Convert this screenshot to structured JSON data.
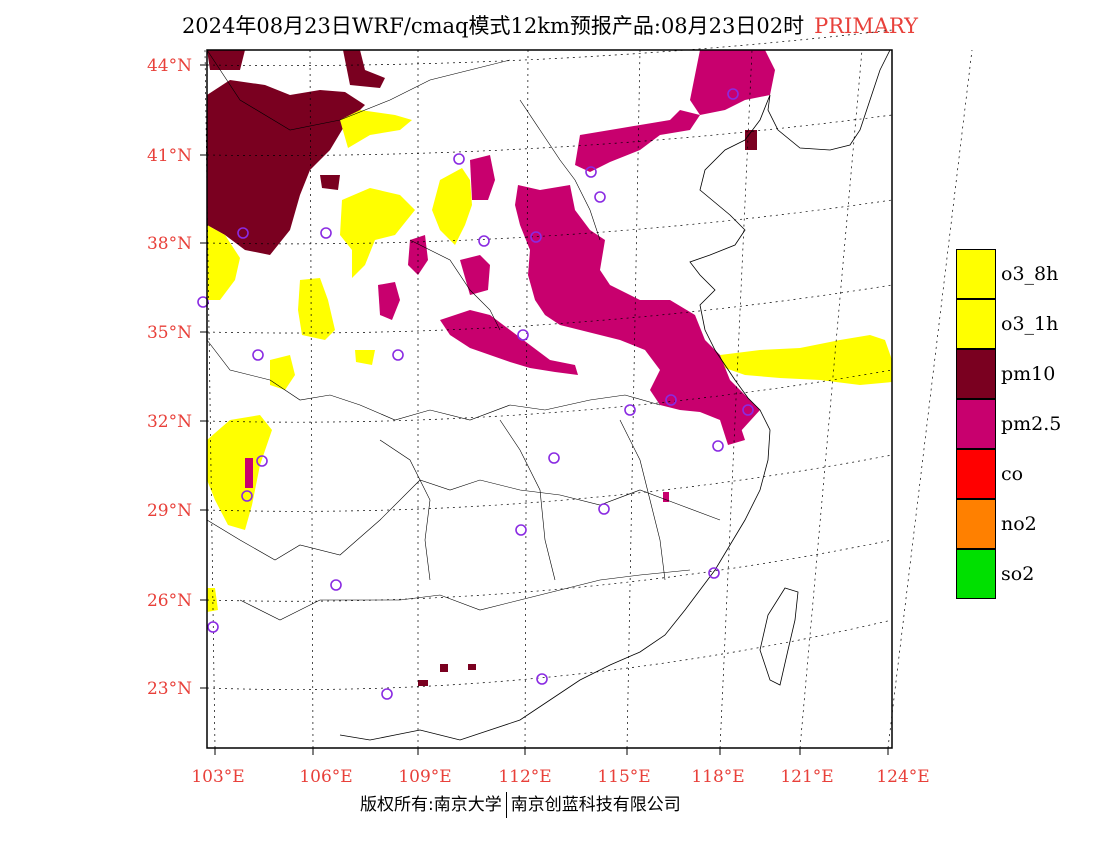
{
  "header": {
    "title": "2024年08月23日WRF/cmaq模式12km预报产品:08月23日02时",
    "tag": "PRIMARY"
  },
  "axes": {
    "lat_labels": [
      "23°N",
      "26°N",
      "29°N",
      "32°N",
      "35°N",
      "38°N",
      "41°N",
      "44°N"
    ],
    "lon_labels": [
      "103°E",
      "106°E",
      "109°E",
      "112°E",
      "115°E",
      "118°E",
      "121°E",
      "124°E"
    ],
    "label_color": "#e8403a"
  },
  "legend": {
    "items": [
      {
        "label": "o3_8h",
        "color": "#ffff00"
      },
      {
        "label": "o3_1h",
        "color": "#ffff00"
      },
      {
        "label": "pm10",
        "color": "#7a0020"
      },
      {
        "label": "pm2.5",
        "color": "#c8006e"
      },
      {
        "label": "co",
        "color": "#ff0000"
      },
      {
        "label": "no2",
        "color": "#ff8000"
      },
      {
        "label": "so2",
        "color": "#00e000"
      }
    ]
  },
  "footer": {
    "left": "版权所有:南京大学",
    "right": "南京创蓝科技有限公司"
  },
  "station_marker": {
    "color": "#8a2be2",
    "icon": "circle-icon"
  }
}
